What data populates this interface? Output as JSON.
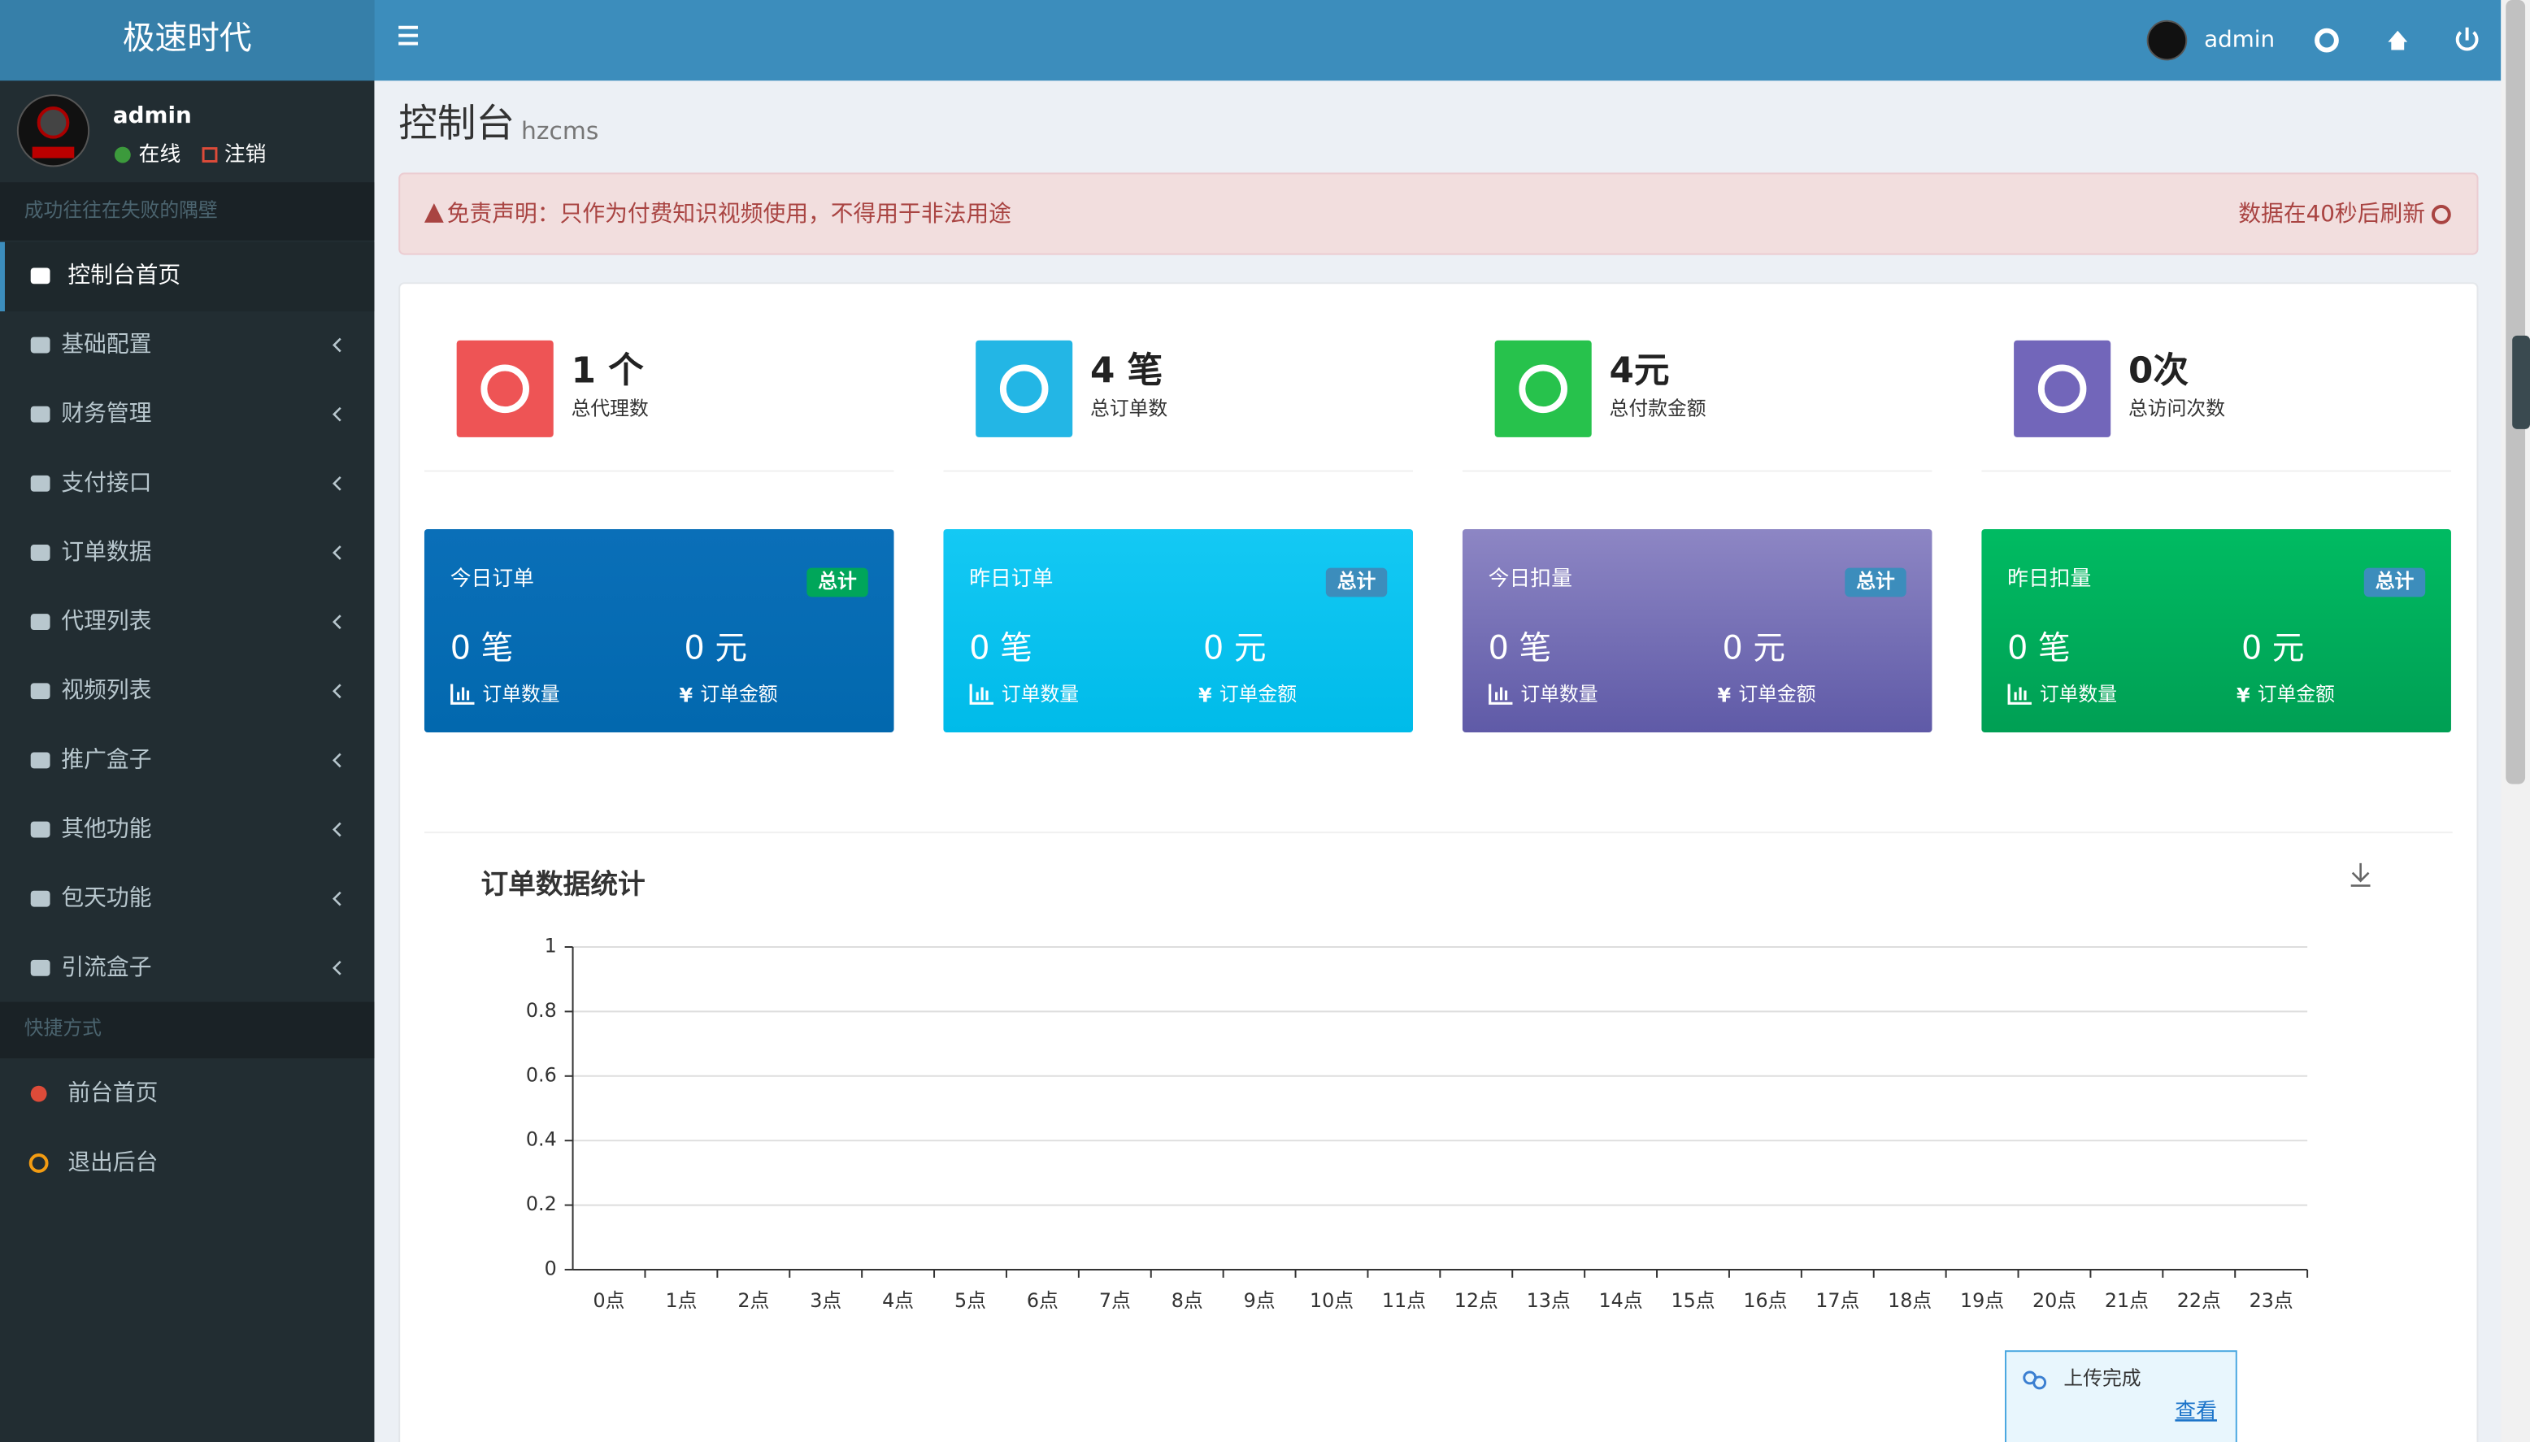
{
  "sidebar": {
    "brand": "极速时代",
    "user": {
      "name": "admin",
      "status": "在线",
      "logout": "注销"
    },
    "motto": "成功往往在失败的隅壁",
    "menu": [
      "控制台首页",
      "基础配置",
      "财务管理",
      "支付接口",
      "订单数据",
      "代理列表",
      "视频列表",
      "推广盒子",
      "其他功能",
      "包天功能",
      "引流盒子"
    ],
    "quick_title": "快捷方式",
    "quick": [
      "前台首页",
      "退出后台"
    ]
  },
  "topbar": {
    "user": "admin"
  },
  "header": {
    "title": "控制台",
    "subtitle": "hzcms"
  },
  "alert": {
    "text": "免责声明：只作为付费知识视频使用，不得用于非法用途",
    "refresh": "数据在40秒后刷新"
  },
  "stats": [
    {
      "value": "1 个",
      "label": "总代理数"
    },
    {
      "value": "4 笔",
      "label": "总订单数"
    },
    {
      "value": "4元",
      "label": "总付款金额"
    },
    {
      "value": "0次",
      "label": "总访问次数"
    }
  ],
  "cards": [
    {
      "title": "今日订单",
      "badge": "总计",
      "count": "0 笔",
      "count_label": "订单数量",
      "amount": "0 元",
      "amount_label": "订单金额"
    },
    {
      "title": "昨日订单",
      "badge": "总计",
      "count": "0 笔",
      "count_label": "订单数量",
      "amount": "0 元",
      "amount_label": "订单金额"
    },
    {
      "title": "今日扣量",
      "badge": "总计",
      "count": "0 笔",
      "count_label": "订单数量",
      "amount": "0 元",
      "amount_label": "订单金额"
    },
    {
      "title": "昨日扣量",
      "badge": "总计",
      "count": "0 笔",
      "count_label": "订单数量",
      "amount": "0 元",
      "amount_label": "订单金额"
    }
  ],
  "chart_data": {
    "type": "line",
    "title": "订单数据统计",
    "categories": [
      "0点",
      "1点",
      "2点",
      "3点",
      "4点",
      "5点",
      "6点",
      "7点",
      "8点",
      "9点",
      "10点",
      "11点",
      "12点",
      "13点",
      "14点",
      "15点",
      "16点",
      "17点",
      "18点",
      "19点",
      "20点",
      "21点",
      "22点",
      "23点"
    ],
    "ylim": [
      0,
      1
    ],
    "yticks": [
      0,
      0.2,
      0.4,
      0.6,
      0.8,
      1
    ],
    "grid": true
  },
  "toast": {
    "text": "上传完成",
    "link": "查看"
  }
}
